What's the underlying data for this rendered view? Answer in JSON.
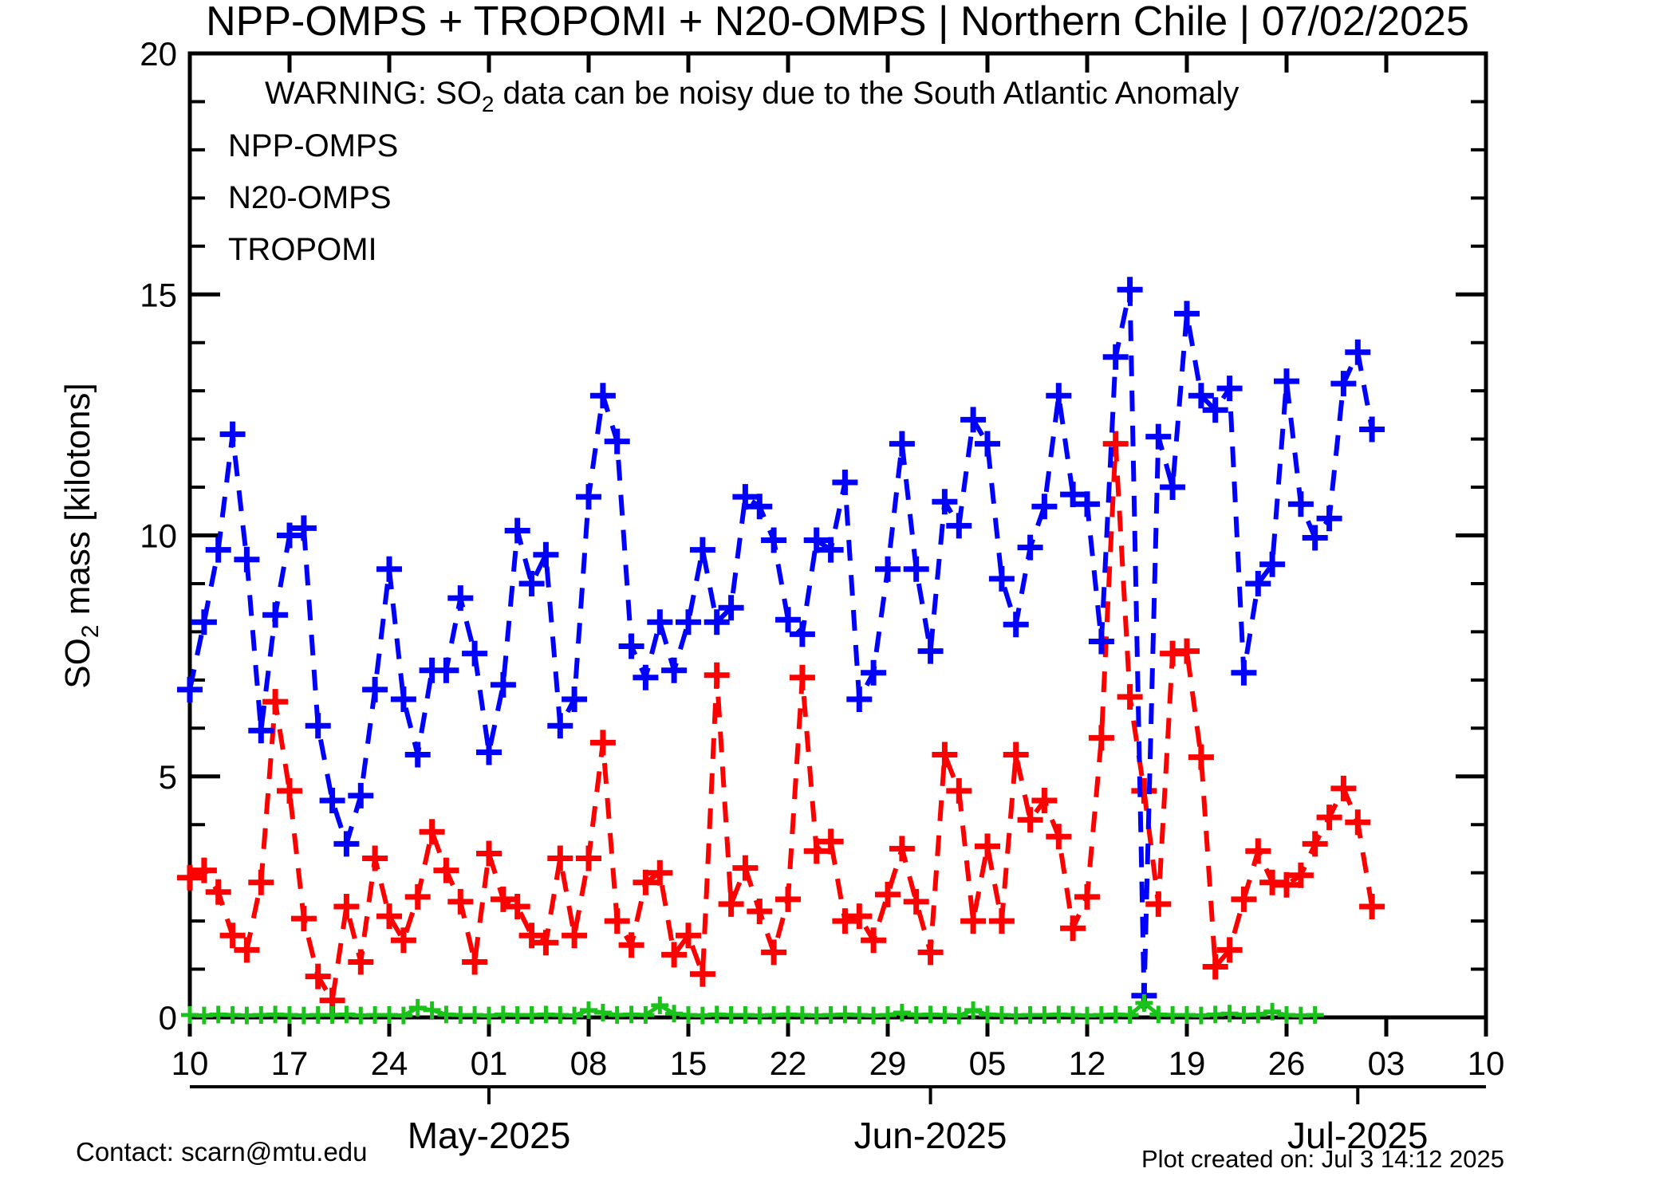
{
  "title": "NPP-OMPS + TROPOMI + N20-OMPS | Northern Chile | 07/02/2025",
  "warning": {
    "pre": "WARNING: SO",
    "sub": "2",
    "post": " data can be noisy due to the South Atlantic Anomaly",
    "color": "#ff0000"
  },
  "legend": [
    {
      "label": "NPP-OMPS",
      "color": "#ff0000"
    },
    {
      "label": "N20-OMPS",
      "color": "#0000ff"
    },
    {
      "label": "TROPOMI",
      "color": "#19c319"
    }
  ],
  "y_axis_title": {
    "pre": "SO",
    "sub": "2",
    "post": " mass [kilotons]"
  },
  "footer": {
    "contact": "Contact: scarn@mtu.edu",
    "created": "Plot created on: Jul  3 14:12 2025",
    "color": "#ff0000"
  },
  "chart_data": {
    "type": "line",
    "title": "NPP-OMPS + TROPOMI + N20-OMPS | Northern Chile | 07/02/2025",
    "ylabel": "SO2 mass [kilotons]",
    "ylim": [
      0,
      20
    ],
    "y_major_tick_step": 5,
    "y_minor_tick_step": 1,
    "grid": false,
    "legend_position": "top-left-inside",
    "x_start_date": "2025-04-10",
    "x_range_days": 91,
    "x_major_ticks_days": [
      0,
      7,
      14,
      21,
      28,
      35,
      42,
      49,
      56,
      63,
      70,
      77,
      84,
      91
    ],
    "x_major_tick_labels": [
      "10",
      "17",
      "24",
      "01",
      "08",
      "15",
      "22",
      "29",
      "05",
      "12",
      "19",
      "26",
      "03",
      "10"
    ],
    "month_ticks": [
      {
        "label": "May-2025",
        "day": 21
      },
      {
        "label": "Jun-2025",
        "day": 52
      },
      {
        "label": "Jul-2025",
        "day": 82
      }
    ],
    "series": [
      {
        "name": "NPP-OMPS",
        "color": "#ff0000",
        "marker": "plus",
        "linestyle": "dashed",
        "start_day": 0,
        "values": [
          2.9,
          3.05,
          2.6,
          1.7,
          1.4,
          2.8,
          6.55,
          4.7,
          2.05,
          0.85,
          0.35,
          2.3,
          1.15,
          3.3,
          2.1,
          1.6,
          2.5,
          3.85,
          3.05,
          2.4,
          1.15,
          3.4,
          2.45,
          2.3,
          1.7,
          1.55,
          3.3,
          1.7,
          3.3,
          5.7,
          2.0,
          1.5,
          2.8,
          3.0,
          1.3,
          1.7,
          0.9,
          7.1,
          2.35,
          3.1,
          2.2,
          1.35,
          2.45,
          7.05,
          3.45,
          3.65,
          2.0,
          2.1,
          1.6,
          2.55,
          3.5,
          2.4,
          1.35,
          5.45,
          4.7,
          2.0,
          3.55,
          2.0,
          5.45,
          4.1,
          4.5,
          3.75,
          1.85,
          2.5,
          5.8,
          11.9,
          6.65,
          4.7,
          2.35,
          7.55,
          7.6,
          5.4,
          1.05,
          1.4,
          2.45,
          3.45,
          2.8,
          2.75,
          2.95,
          3.6,
          4.15,
          4.75,
          4.05,
          2.3
        ]
      },
      {
        "name": "N20-OMPS",
        "color": "#0000ff",
        "marker": "plus",
        "linestyle": "dashed",
        "start_day": 0,
        "values": [
          6.8,
          8.2,
          9.7,
          12.1,
          9.5,
          5.95,
          8.35,
          10.0,
          10.15,
          6.05,
          4.5,
          3.6,
          4.6,
          6.8,
          9.3,
          6.6,
          5.45,
          7.2,
          7.2,
          8.7,
          7.55,
          5.5,
          6.9,
          10.1,
          9.0,
          9.6,
          6.05,
          6.6,
          10.8,
          12.9,
          11.95,
          7.7,
          7.05,
          8.2,
          7.2,
          8.2,
          9.7,
          8.2,
          8.5,
          10.8,
          10.6,
          9.9,
          8.25,
          7.95,
          9.9,
          9.7,
          11.1,
          6.6,
          7.15,
          9.3,
          11.9,
          9.3,
          7.6,
          10.7,
          10.2,
          12.4,
          11.9,
          9.1,
          8.15,
          9.75,
          10.6,
          12.9,
          10.85,
          10.65,
          7.8,
          13.7,
          15.1,
          0.45,
          12.05,
          11.0,
          14.6,
          12.9,
          12.6,
          13.05,
          7.15,
          9.0,
          9.4,
          13.2,
          10.65,
          9.95,
          10.35,
          13.15,
          13.8,
          12.2
        ]
      },
      {
        "name": "TROPOMI",
        "color": "#19c319",
        "marker": "plus",
        "linestyle": "solid",
        "start_day": 0,
        "values": [
          0.05,
          0.04,
          0.06,
          0.05,
          0.04,
          0.05,
          0.06,
          0.05,
          0.04,
          0.05,
          0.05,
          0.06,
          0.04,
          0.05,
          0.05,
          0.04,
          0.2,
          0.15,
          0.06,
          0.05,
          0.05,
          0.04,
          0.06,
          0.05,
          0.05,
          0.06,
          0.05,
          0.04,
          0.15,
          0.1,
          0.05,
          0.06,
          0.05,
          0.25,
          0.08,
          0.05,
          0.04,
          0.06,
          0.05,
          0.05,
          0.04,
          0.05,
          0.06,
          0.05,
          0.04,
          0.05,
          0.06,
          0.05,
          0.04,
          0.05,
          0.1,
          0.05,
          0.06,
          0.05,
          0.04,
          0.15,
          0.06,
          0.05,
          0.04,
          0.05,
          0.05,
          0.06,
          0.05,
          0.04,
          0.05,
          0.06,
          0.05,
          0.3,
          0.06,
          0.05,
          0.05,
          0.04,
          0.06,
          0.08,
          0.05,
          0.06,
          0.12,
          0.05,
          0.04,
          0.05
        ]
      }
    ]
  }
}
